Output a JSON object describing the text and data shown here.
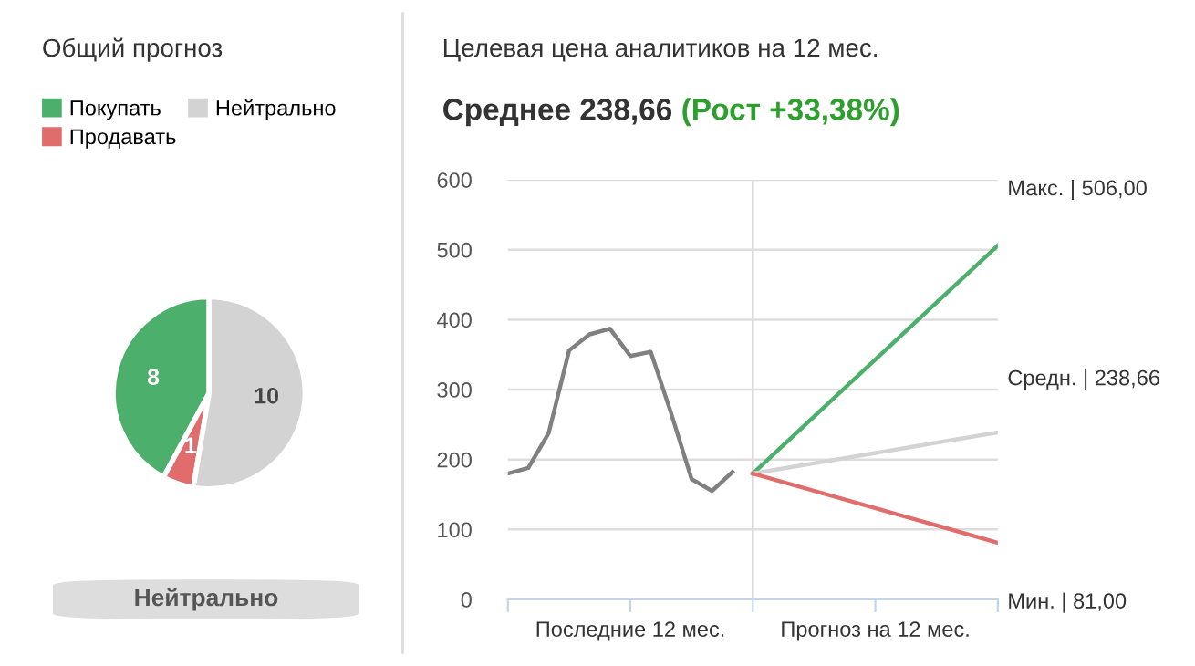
{
  "chart_data": [
    {
      "type": "pie",
      "title": "Общий прогноз",
      "categories": [
        "Покупать",
        "Продавать",
        "Нейтрально"
      ],
      "values": [
        8,
        1,
        10
      ],
      "colors": [
        "#4caf6b",
        "#e06c6c",
        "#d3d3d3"
      ],
      "data_labels": true,
      "legend": "top left",
      "annotations": [
        "Нейтрально"
      ]
    },
    {
      "type": "line",
      "title": "Целевая цена аналитиков на 12 мес.",
      "subtitle": "Среднее 238,66",
      "categories": [
        null,
        null,
        null,
        null,
        null,
        null,
        "Последние 12 мес.",
        null,
        null,
        null,
        null,
        null,
        null,
        null,
        null,
        null,
        null,
        null,
        "Прогноз на 12 мес.",
        null,
        null,
        null,
        null,
        null,
        null
      ],
      "ylim": [
        0,
        600
      ],
      "yticks": [
        0,
        100,
        200,
        300,
        400,
        500,
        600
      ],
      "grid": "y",
      "series": [
        {
          "color": "#808080",
          "values": [
            180,
            188,
            238,
            356,
            379,
            387,
            348,
            354,
            266,
            172,
            155,
            182,
            null,
            null,
            null,
            null,
            null,
            null,
            null,
            null,
            null,
            null,
            null,
            null,
            null
          ]
        },
        {
          "color": "#4caf6b",
          "values": [
            null,
            null,
            null,
            null,
            null,
            null,
            null,
            null,
            null,
            null,
            null,
            null,
            180,
            null,
            null,
            null,
            null,
            null,
            null,
            null,
            null,
            null,
            null,
            null,
            506
          ]
        },
        {
          "color": "#d3d3d3",
          "values": [
            null,
            null,
            null,
            null,
            null,
            null,
            null,
            null,
            null,
            null,
            null,
            null,
            180,
            null,
            null,
            null,
            null,
            null,
            null,
            null,
            null,
            null,
            null,
            null,
            238.66
          ]
        },
        {
          "color": "#e06c6c",
          "values": [
            null,
            null,
            null,
            null,
            null,
            null,
            null,
            null,
            null,
            null,
            null,
            null,
            180,
            null,
            null,
            null,
            null,
            null,
            null,
            null,
            null,
            null,
            null,
            null,
            81
          ]
        }
      ],
      "annotations": [
        "(Рост +33,38%)",
        "Макс. | 506,00",
        "Средн. | 238,66",
        "Мин. | 81,00"
      ]
    }
  ]
}
